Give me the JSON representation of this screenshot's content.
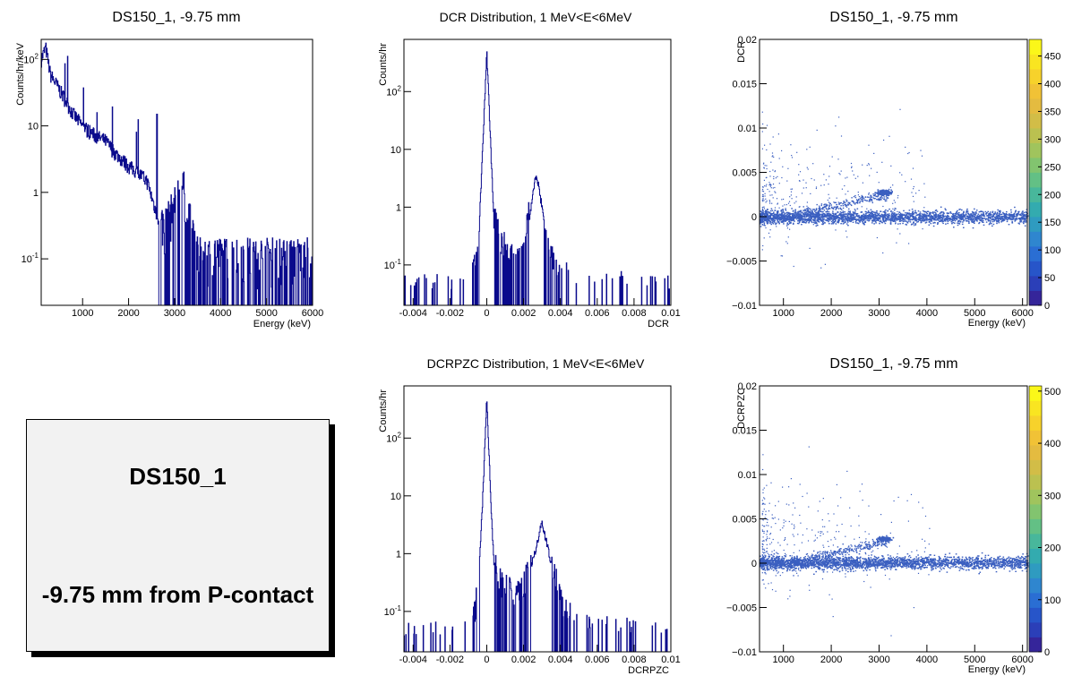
{
  "chart_data": [
    {
      "type": "line",
      "title": "DS150_1, -9.75 mm",
      "xlabel": "Energy (keV)",
      "ylabel": "Counts/hr/keV",
      "xlim": [
        100,
        6000
      ],
      "ylim": [
        0.02,
        200
      ],
      "log_y": true,
      "xticks": [
        "1000",
        "2000",
        "3000",
        "4000",
        "5000",
        "6000"
      ],
      "yticks": [
        "10^-1",
        "1",
        "10",
        "10^2"
      ],
      "series": [
        {
          "x": [
            100,
            200,
            300,
            500,
            800,
            1000,
            1300,
            1500,
            1700,
            2000,
            2200,
            2400,
            2600,
            2700,
            2800,
            3000,
            3100,
            3200,
            3300,
            3500,
            4000,
            5000,
            6000
          ],
          "values": [
            100,
            150,
            60,
            35,
            15,
            10,
            7,
            6,
            4,
            2.5,
            2,
            1.5,
            0.5,
            0.2,
            0.2,
            0.4,
            0.7,
            0.7,
            0.3,
            0.07,
            0.07,
            0.07,
            0.07
          ]
        }
      ],
      "grid": false
    },
    {
      "type": "line",
      "title": "DCR Distribution, 1 MeV<E<6MeV",
      "xlabel": "DCR",
      "ylabel": "Counts/hr",
      "xlim": [
        -0.0045,
        0.01
      ],
      "ylim": [
        0.02,
        800
      ],
      "log_y": true,
      "xticks": [
        "-0.004",
        "-0.002",
        "0",
        "0.002",
        "0.004",
        "0.006",
        "0.008",
        "0.01"
      ],
      "yticks": [
        "10^-1",
        "1",
        "10",
        "10^2"
      ],
      "series": [
        {
          "x": [
            -0.0045,
            -0.001,
            -0.0006,
            -0.0004,
            -0.0002,
            0,
            0.0002,
            0.0004,
            0.0006,
            0.001,
            0.0015,
            0.002,
            0.0024,
            0.0027,
            0.003,
            0.0034,
            0.004,
            0.005,
            0.01
          ],
          "values": [
            0.02,
            0.02,
            0.08,
            0.5,
            15,
            500,
            15,
            0.5,
            0.3,
            0.15,
            0.1,
            0.15,
            1,
            4,
            1,
            0.1,
            0.05,
            0.03,
            0.02
          ]
        }
      ],
      "grid": false
    },
    {
      "type": "heatmap",
      "title": "DS150_1, -9.75 mm",
      "xlabel": "Energy (keV)",
      "ylabel": "DCR",
      "xlim": [
        500,
        6100
      ],
      "ylim": [
        -0.01,
        0.02
      ],
      "xticks": [
        "1000",
        "2000",
        "3000",
        "4000",
        "5000",
        "6000"
      ],
      "yticks": [
        "−0.01",
        "−0.005",
        "0",
        "0.005",
        "0.01",
        "0.015",
        "0.02"
      ],
      "zticks": [
        "0",
        "50",
        "100",
        "150",
        "200",
        "250",
        "300",
        "350",
        "400",
        "450"
      ],
      "zmax": 480
    },
    {
      "type": "line",
      "title": "DCRPZC Distribution, 1 MeV<E<6MeV",
      "xlabel": "DCRPZC",
      "ylabel": "Counts/hr",
      "xlim": [
        -0.0045,
        0.01
      ],
      "ylim": [
        0.02,
        800
      ],
      "log_y": true,
      "xticks": [
        "-0.004",
        "-0.002",
        "0",
        "0.002",
        "0.004",
        "0.006",
        "0.008",
        "0.01"
      ],
      "yticks": [
        "10^-1",
        "1",
        "10",
        "10^2"
      ],
      "series": [
        {
          "x": [
            -0.0045,
            -0.001,
            -0.0006,
            -0.0004,
            -0.0002,
            0,
            0.0002,
            0.0004,
            0.0006,
            0.001,
            0.0015,
            0.002,
            0.0026,
            0.003,
            0.0034,
            0.004,
            0.005,
            0.01
          ],
          "values": [
            0.02,
            0.02,
            0.08,
            0.6,
            12,
            500,
            12,
            0.6,
            0.3,
            0.2,
            0.15,
            0.2,
            1,
            3.5,
            1,
            0.1,
            0.03,
            0.02
          ]
        }
      ],
      "grid": false
    },
    {
      "type": "heatmap",
      "title": "DS150_1, -9.75 mm",
      "xlabel": "Energy (keV)",
      "ylabel": "DCRPZC",
      "xlim": [
        500,
        6100
      ],
      "ylim": [
        -0.01,
        0.02
      ],
      "xticks": [
        "1000",
        "2000",
        "3000",
        "4000",
        "5000",
        "6000"
      ],
      "yticks": [
        "−0.01",
        "−0.005",
        "0",
        "0.005",
        "0.01",
        "0.015",
        "0.02"
      ],
      "zticks": [
        "0",
        "100",
        "200",
        "300",
        "400",
        "500"
      ],
      "zmax": 510
    }
  ],
  "note": {
    "line1": "DS150_1",
    "line2": "-9.75 mm from P-contact"
  },
  "colors": {
    "hist": "#0a0a8c",
    "scatter": "#3b5fc0"
  }
}
